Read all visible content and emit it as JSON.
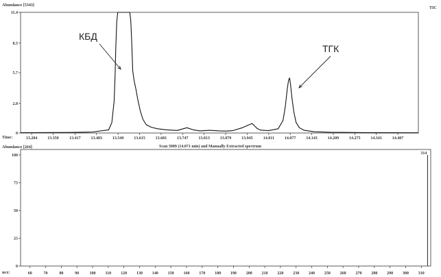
{
  "chart_data": [
    {
      "type": "line",
      "title": "",
      "ylabel": "Abundance [5343]",
      "xlabel": "Time:",
      "corner_label": "TIC",
      "x_ticks": [
        "13.284",
        "13.350",
        "13.417",
        "13.483",
        "13.549",
        "13.615",
        "13.681",
        "13.747",
        "13.813",
        "13.879",
        "13.945",
        "14.011",
        "14.077",
        "14.143",
        "14.209",
        "14.275",
        "14.341",
        "14.407"
      ],
      "y_ticks": [
        "11.4",
        "8.5",
        "5.7",
        "2.8",
        "0"
      ],
      "xlim": [
        13.25,
        14.47
      ],
      "ylim": [
        0,
        11.4
      ],
      "grid": false,
      "series": [
        {
          "x": [
            13.25,
            13.4,
            13.47,
            13.52,
            13.53,
            13.537,
            13.54,
            13.542,
            13.545,
            13.548,
            13.552,
            13.555,
            13.575,
            13.58,
            13.585,
            13.588,
            13.591,
            13.594,
            13.598,
            13.604,
            13.61,
            13.617,
            13.625,
            13.635,
            13.65,
            13.67,
            13.7,
            13.73,
            13.76,
            13.78,
            13.8,
            13.83,
            13.86,
            13.88,
            13.9,
            13.93,
            13.96,
            13.975,
            13.985,
            13.995,
            14.01,
            14.04,
            14.055,
            14.062,
            14.068,
            14.072,
            14.075,
            14.078,
            14.082,
            14.088,
            14.095,
            14.105,
            14.12,
            14.15,
            14.2,
            14.3,
            14.47
          ],
          "y": [
            0.03,
            0.05,
            0.1,
            0.3,
            1.0,
            3.0,
            5.6,
            8.0,
            10.5,
            11.4,
            11.4,
            11.4,
            11.4,
            11.4,
            11.4,
            10.6,
            8.5,
            5.9,
            5.0,
            4.1,
            3.1,
            2.1,
            1.3,
            0.8,
            0.55,
            0.4,
            0.3,
            0.24,
            0.5,
            0.3,
            0.2,
            0.25,
            0.2,
            0.18,
            0.22,
            0.5,
            0.9,
            0.45,
            0.28,
            0.25,
            0.22,
            0.4,
            1.2,
            2.5,
            4.2,
            5.0,
            5.2,
            4.6,
            3.4,
            2.0,
            1.0,
            0.5,
            0.25,
            0.12,
            0.07,
            0.04,
            0.02
          ]
        }
      ],
      "annotations": [
        {
          "text": "КБД",
          "x": 13.548,
          "y": 5.8
        },
        {
          "text": "ТГК",
          "x": 14.075,
          "y": 4.3
        }
      ]
    },
    {
      "type": "bar",
      "title": "Scan 5089 (14.071 min) and Manually Extracted spectrum",
      "ylabel": "Abundance [264]",
      "xlabel": "m/z:",
      "x_ticks": [
        "60",
        "70",
        "80",
        "90",
        "100",
        "110",
        "120",
        "130",
        "140",
        "150",
        "160",
        "170",
        "180",
        "190",
        "200",
        "210",
        "220",
        "230",
        "240",
        "250",
        "260",
        "270",
        "280",
        "290",
        "300",
        "310"
      ],
      "y_ticks": [
        "100",
        "75",
        "50",
        "25",
        "0"
      ],
      "xlim": [
        54,
        316
      ],
      "ylim": [
        0,
        100
      ],
      "grid": false,
      "peaks": [
        {
          "mz": 314,
          "value": 100,
          "label": "314"
        }
      ]
    }
  ]
}
